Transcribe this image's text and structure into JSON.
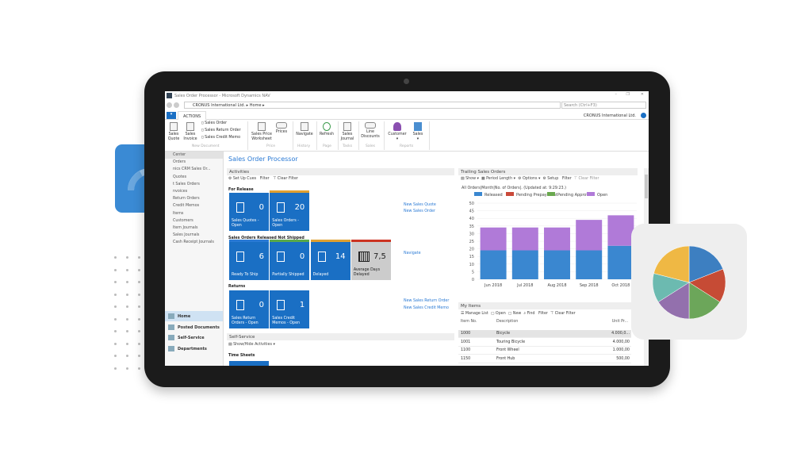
{
  "window": {
    "title": "Sales Order Processor - Microsoft Dynamics NAV",
    "breadcrumb": [
      "CRONUS International Ltd.",
      "Home"
    ],
    "search_placeholder": "Search (Ctrl+F3)",
    "company": "CRONUS International Ltd."
  },
  "ribbon": {
    "tab": "ACTIONS",
    "buttons": {
      "sales_quote": "Sales Quote",
      "sales_invoice": "Sales Invoice",
      "sales_order": "Sales Order",
      "sales_return_order": "Sales Return Order",
      "sales_credit_memo": "Sales Credit Memo",
      "price_worksheet": "Sales Price Worksheet",
      "prices": "Prices",
      "navigate": "Navigate",
      "refresh": "Refresh",
      "sales_journal": "Sales Journal",
      "line_discounts": "Line Discounts",
      "customer": "Customer",
      "sales": "Sales"
    },
    "groups": {
      "new_document": "New Document",
      "price": "Price",
      "history": "History",
      "page": "Page",
      "tasks": "Tasks",
      "sales": "Sales",
      "reports": "Reports"
    }
  },
  "nav": {
    "items": [
      "Center",
      "Orders",
      "nics CRM Sales Or...",
      "Quotes",
      "t Sales Orders",
      "nvoices",
      "Return Orders",
      "Credit Memos",
      "Items",
      "Customers",
      "Item Journals",
      "Sales Journals",
      "Cash Receipt Journals"
    ],
    "bottom": [
      "Home",
      "Posted Documents",
      "Self-Service",
      "Departments"
    ]
  },
  "page_title": "Sales Order Processor",
  "activities": {
    "title": "Activities",
    "toolbar": [
      "Set Up Cues",
      "Filter",
      "Clear Filter"
    ],
    "for_release": {
      "heading": "For Release",
      "tiles": [
        {
          "value": "0",
          "label": "Sales Quotes - Open"
        },
        {
          "value": "20",
          "label": "Sales Orders - Open"
        }
      ],
      "links": [
        "New Sales Quote",
        "New Sales Order"
      ]
    },
    "not_shipped": {
      "heading": "Sales Orders Released Not Shipped",
      "tiles": [
        {
          "value": "6",
          "label": "Ready To Ship"
        },
        {
          "value": "0",
          "label": "Partially Shipped"
        },
        {
          "value": "14",
          "label": "Delayed"
        },
        {
          "value": "7,5",
          "label": "Average Days Delayed"
        }
      ],
      "links": [
        "Navigate"
      ]
    },
    "returns": {
      "heading": "Returns",
      "tiles": [
        {
          "value": "0",
          "label": "Sales Return Orders - Open"
        },
        {
          "value": "1",
          "label": "Sales Credit Memos - Open"
        }
      ],
      "links": [
        "New Sales Return Order",
        "New Sales Credit Memo"
      ]
    }
  },
  "self_service": {
    "title": "Self-Service",
    "toolbar": "Show/Hide Activities",
    "heading": "Time Sheets"
  },
  "trailing": {
    "title": "Trailing Sales Orders",
    "toolbar": [
      "Show",
      "Period Length",
      "Options",
      "Setup",
      "Filter",
      "Clear Filter"
    ],
    "caption": "All Orders|Month|No. of Orders|. (Updated at: 9:29:23.)"
  },
  "chart_data": {
    "type": "bar",
    "stacked": true,
    "categories": [
      "Jun 2018",
      "Jul 2018",
      "Aug 2018",
      "Sep 2018",
      "Oct 2018"
    ],
    "series": [
      {
        "name": "Released",
        "color": "#3a87d0",
        "values": [
          19,
          19,
          19,
          19,
          22
        ]
      },
      {
        "name": "Pending Prepayment",
        "color": "#c9493a",
        "values": [
          0,
          0,
          0,
          0,
          0
        ]
      },
      {
        "name": "Pending Approval",
        "color": "#6aa84f",
        "values": [
          0,
          0,
          0,
          0,
          0
        ]
      },
      {
        "name": "Open",
        "color": "#b07ad8",
        "values": [
          15,
          15,
          15,
          20,
          20
        ]
      }
    ],
    "ylim": [
      0,
      50
    ],
    "yticks": [
      "0",
      "5",
      "10",
      "15",
      "20",
      "25",
      "30",
      "35",
      "40",
      "45",
      "50"
    ],
    "grid": true,
    "legend": "top"
  },
  "my_items": {
    "title": "My Items",
    "toolbar": [
      "Manage List",
      "Open",
      "New",
      "Find",
      "Filter",
      "Clear Filter"
    ],
    "columns": [
      "Item No.",
      "Description",
      "Unit Pr..."
    ],
    "rows": [
      [
        "1000",
        "Bicycle",
        "4.000,0..."
      ],
      [
        "1001",
        "Touring Bicycle",
        "4.000,00"
      ],
      [
        "1100",
        "Front Wheel",
        "1.000,00"
      ],
      [
        "1150",
        "Front Hub",
        "500,00"
      ]
    ]
  },
  "decor": {
    "pie_values": [
      19,
      15,
      16,
      16,
      13,
      21
    ],
    "pie_colors": [
      "#3d7fc1",
      "#c64b35",
      "#6ca65a",
      "#9370ad",
      "#6cbab0",
      "#efb844"
    ]
  }
}
